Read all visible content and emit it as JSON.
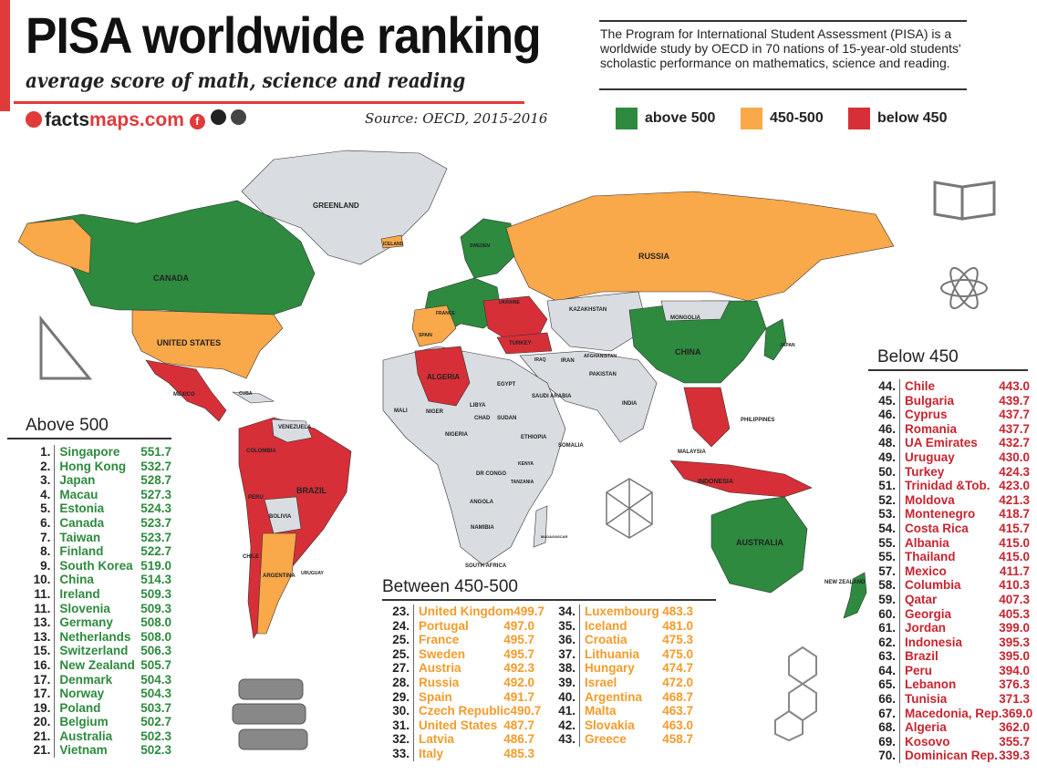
{
  "header": {
    "title": "PISA worldwide ranking",
    "subtitle": "average score of math, science and reading",
    "logo_prefix": "facts",
    "logo_suffix": "maps.com",
    "source": "Source: OECD, 2015-2016",
    "intro": "The Program for International Student Assessment (PISA) is a worldwide study by OECD in 70 nations of 15-year-old students' scholastic performance on mathematics, science and reading."
  },
  "legend": [
    {
      "label": "above 500",
      "color": "#2d8a3e"
    },
    {
      "label": "450-500",
      "color": "#f9a84a"
    },
    {
      "label": "below 450",
      "color": "#d62f38"
    }
  ],
  "map_labels": {
    "greenland": "GREENLAND",
    "canada": "CANADA",
    "usa": "UNITED STATES",
    "russia": "RUSSIA",
    "china": "CHINA",
    "brazil": "BRAZIL",
    "australia": "AUSTRALIA",
    "algeria": "ALGERIA",
    "mexico": "MEXICO",
    "kazakhstan": "KAZAKHSTAN",
    "mongolia": "MONGOLIA",
    "india": "INDIA",
    "indonesia": "INDONESIA",
    "argentina": "ARGENTINA",
    "peru": "PERU",
    "bolivia": "BOLIVIA",
    "chile": "CHILE",
    "colombia": "COLOMBIA",
    "venezuela": "VENEZUELA",
    "libya": "LIBYA",
    "egypt": "EGYPT",
    "turkey": "TURKEY",
    "iran": "IRAN",
    "saudi": "SAUDI ARABIA",
    "south_africa": "SOUTH AFRICA",
    "new_zealand": "NEW ZEALAND",
    "ukraine": "UKRAINE",
    "spain": "SPAIN",
    "france": "FRANCE",
    "japan": "JAPAN",
    "mali": "MALI",
    "niger": "NIGER",
    "chad": "CHAD",
    "sudan": "SUDAN",
    "ethiopia": "ETHIOPIA",
    "nigeria": "NIGERIA",
    "dr_congo": "DR CONGO",
    "angola": "ANGOLA",
    "namibia": "NAMIBIA",
    "somalia": "SOMALIA",
    "pakistan": "PAKISTAN",
    "afghanistan": "AFGHANISTAN",
    "iraq": "IRAQ",
    "philippines": "PHILIPPINES",
    "malaysia": "MALAYSIA",
    "iceland": "ICELAND",
    "sweden": "SWEDEN",
    "uruguay": "URUGUAY",
    "cuba": "CUBA",
    "madagascar": "MADAGASCAR",
    "kenya": "KENYA",
    "tanzania": "TANZANIA"
  },
  "above": {
    "title": "Above 500",
    "rows": [
      {
        "rank": "1.",
        "name": "Singapore",
        "score": "551.7"
      },
      {
        "rank": "2.",
        "name": "Hong Kong",
        "score": "532.7"
      },
      {
        "rank": "3.",
        "name": "Japan",
        "score": "528.7"
      },
      {
        "rank": "4.",
        "name": "Macau",
        "score": "527.3"
      },
      {
        "rank": "5.",
        "name": "Estonia",
        "score": "524.3"
      },
      {
        "rank": "6.",
        "name": "Canada",
        "score": "523.7"
      },
      {
        "rank": "7.",
        "name": "Taiwan",
        "score": "523.7"
      },
      {
        "rank": "8.",
        "name": "Finland",
        "score": "522.7"
      },
      {
        "rank": "9.",
        "name": "South Korea",
        "score": "519.0"
      },
      {
        "rank": "10.",
        "name": "China",
        "score": "514.3"
      },
      {
        "rank": "11.",
        "name": "Ireland",
        "score": "509.3"
      },
      {
        "rank": "11.",
        "name": "Slovenia",
        "score": "509.3"
      },
      {
        "rank": "13.",
        "name": "Germany",
        "score": "508.0"
      },
      {
        "rank": "13.",
        "name": "Netherlands",
        "score": "508.0"
      },
      {
        "rank": "15.",
        "name": "Switzerland",
        "score": "506.3"
      },
      {
        "rank": "16.",
        "name": "New Zealand",
        "score": "505.7"
      },
      {
        "rank": "17.",
        "name": "Denmark",
        "score": "504.3"
      },
      {
        "rank": "17.",
        "name": "Norway",
        "score": "504.3"
      },
      {
        "rank": "19.",
        "name": "Poland",
        "score": "503.7"
      },
      {
        "rank": "20.",
        "name": "Belgium",
        "score": "502.7"
      },
      {
        "rank": "21.",
        "name": "Australia",
        "score": "502.3"
      },
      {
        "rank": "21.",
        "name": "Vietnam",
        "score": "502.3"
      }
    ]
  },
  "between": {
    "title": "Between 450-500",
    "col1": [
      {
        "rank": "23.",
        "name": "United Kingdom",
        "score": "499.7"
      },
      {
        "rank": "24.",
        "name": "Portugal",
        "score": "497.0"
      },
      {
        "rank": "25.",
        "name": "France",
        "score": "495.7"
      },
      {
        "rank": "25.",
        "name": "Sweden",
        "score": "495.7"
      },
      {
        "rank": "27.",
        "name": "Austria",
        "score": "492.3"
      },
      {
        "rank": "28.",
        "name": "Russia",
        "score": "492.0"
      },
      {
        "rank": "29.",
        "name": "Spain",
        "score": "491.7"
      },
      {
        "rank": "30.",
        "name": "Czech Republic",
        "score": "490.7"
      },
      {
        "rank": "31.",
        "name": "United States",
        "score": "487.7"
      },
      {
        "rank": "32.",
        "name": "Latvia",
        "score": "486.7"
      },
      {
        "rank": "33.",
        "name": "Italy",
        "score": "485.3"
      }
    ],
    "col2": [
      {
        "rank": "34.",
        "name": "Luxembourg",
        "score": "483.3"
      },
      {
        "rank": "35.",
        "name": "Iceland",
        "score": "481.0"
      },
      {
        "rank": "36.",
        "name": "Croatia",
        "score": "475.3"
      },
      {
        "rank": "37.",
        "name": "Lithuania",
        "score": "475.0"
      },
      {
        "rank": "38.",
        "name": "Hungary",
        "score": "474.7"
      },
      {
        "rank": "39.",
        "name": "Israel",
        "score": "472.0"
      },
      {
        "rank": "40.",
        "name": "Argentina",
        "score": "468.7"
      },
      {
        "rank": "41.",
        "name": "Malta",
        "score": "463.7"
      },
      {
        "rank": "42.",
        "name": "Slovakia",
        "score": "463.0"
      },
      {
        "rank": "43.",
        "name": "Greece",
        "score": "458.7"
      }
    ]
  },
  "below": {
    "title": "Below 450",
    "rows": [
      {
        "rank": "44.",
        "name": "Chile",
        "score": "443.0"
      },
      {
        "rank": "45.",
        "name": "Bulgaria",
        "score": "439.7"
      },
      {
        "rank": "46.",
        "name": "Cyprus",
        "score": "437.7"
      },
      {
        "rank": "46.",
        "name": "Romania",
        "score": "437.7"
      },
      {
        "rank": "48.",
        "name": "UA Emirates",
        "score": "432.7"
      },
      {
        "rank": "49.",
        "name": "Uruguay",
        "score": "430.0"
      },
      {
        "rank": "50.",
        "name": "Turkey",
        "score": "424.3"
      },
      {
        "rank": "51.",
        "name": "Trinidad &Tob.",
        "score": "423.0"
      },
      {
        "rank": "52.",
        "name": "Moldova",
        "score": "421.3"
      },
      {
        "rank": "53.",
        "name": "Montenegro",
        "score": "418.7"
      },
      {
        "rank": "54.",
        "name": "Costa Rica",
        "score": "415.7"
      },
      {
        "rank": "55.",
        "name": "Albania",
        "score": "415.0"
      },
      {
        "rank": "55.",
        "name": "Thailand",
        "score": "415.0"
      },
      {
        "rank": "57.",
        "name": "Mexico",
        "score": "411.7"
      },
      {
        "rank": "58.",
        "name": "Columbia",
        "score": "410.3"
      },
      {
        "rank": "59.",
        "name": "Qatar",
        "score": "407.3"
      },
      {
        "rank": "60.",
        "name": "Georgia",
        "score": "405.3"
      },
      {
        "rank": "61.",
        "name": "Jordan",
        "score": "399.0"
      },
      {
        "rank": "62.",
        "name": "Indonesia",
        "score": "395.3"
      },
      {
        "rank": "63.",
        "name": "Brazil",
        "score": "395.0"
      },
      {
        "rank": "64.",
        "name": "Peru",
        "score": "394.0"
      },
      {
        "rank": "65.",
        "name": "Lebanon",
        "score": "376.3"
      },
      {
        "rank": "66.",
        "name": "Tunisia",
        "score": "371.3"
      },
      {
        "rank": "67.",
        "name": "Macedonia, Rep.",
        "score": "369.0"
      },
      {
        "rank": "68.",
        "name": "Algeria",
        "score": "362.0"
      },
      {
        "rank": "69.",
        "name": "Kosovo",
        "score": "355.7"
      },
      {
        "rank": "70.",
        "name": "Dominican Rep.",
        "score": "339.3"
      }
    ]
  }
}
